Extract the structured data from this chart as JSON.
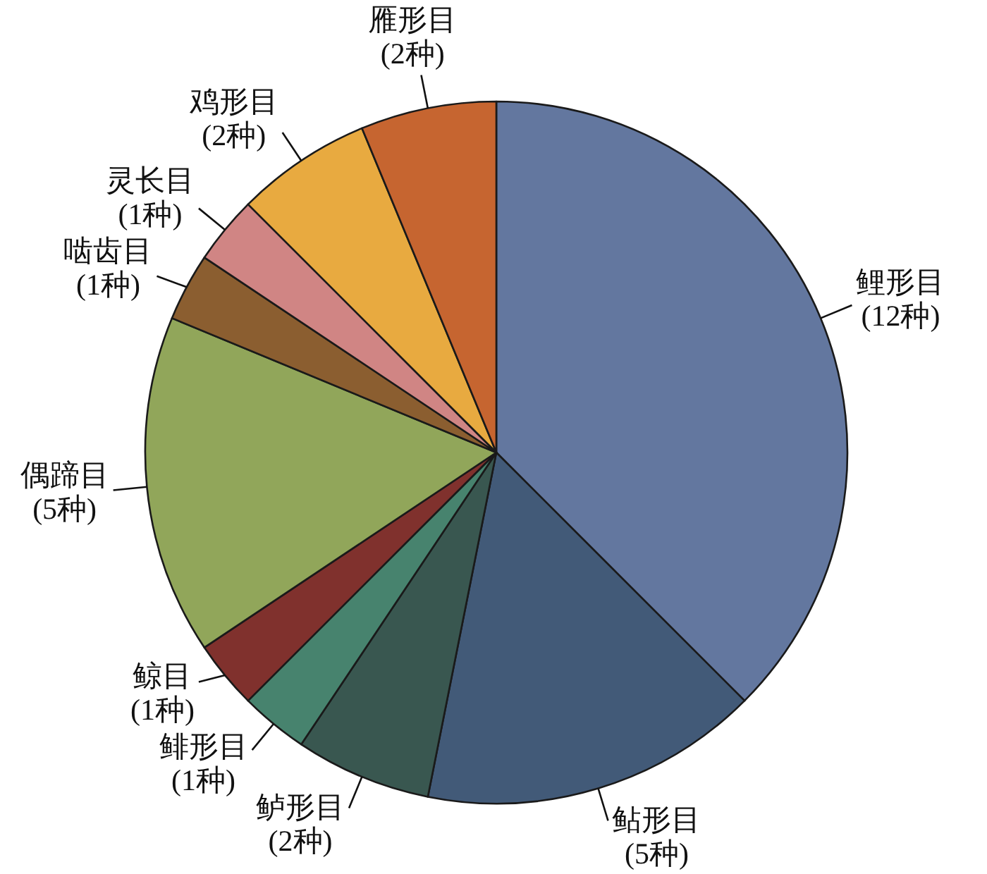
{
  "chart_data": {
    "type": "pie",
    "categories": [
      "鲤形目",
      "鲇形目",
      "鲈形目",
      "鲱形目",
      "鲸目",
      "偶蹄目",
      "啮齿目",
      "灵长目",
      "鸡形目",
      "雁形目"
    ],
    "values": [
      12,
      5,
      2,
      1,
      1,
      5,
      1,
      1,
      2,
      2
    ],
    "value_labels": [
      "(12种)",
      "(5种)",
      "(2种)",
      "(1种)",
      "(1种)",
      "(5种)",
      "(1种)",
      "(1种)",
      "(2种)",
      "(2种)"
    ],
    "colors": [
      "#63779f",
      "#425a78",
      "#395750",
      "#47836e",
      "#80312d",
      "#91a65a",
      "#8b5e30",
      "#d08584",
      "#e8aa40",
      "#c66530"
    ]
  }
}
